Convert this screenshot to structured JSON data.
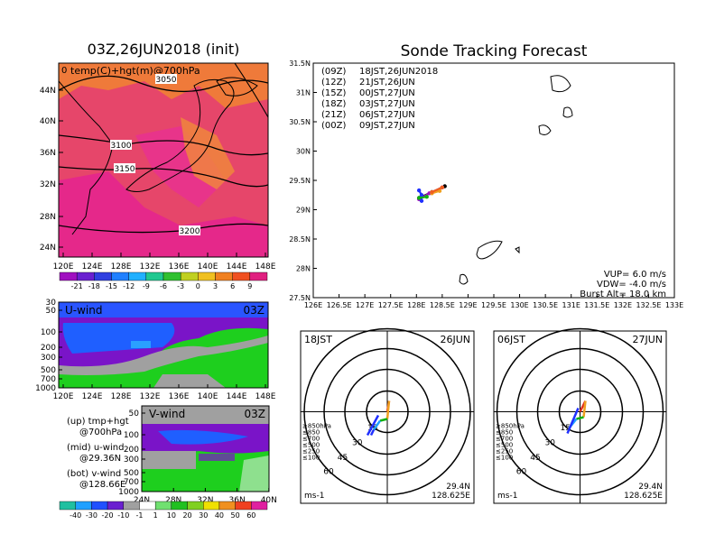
{
  "header": {
    "left_title": "03Z,26JUN2018 (init)",
    "right_title": "Sonde Tracking Forecast"
  },
  "colors": {
    "temp_bg": "#e03c6c",
    "temp_orange": "#ef7a3a",
    "temp_pink": "#e8348a",
    "u_purple": "#7a14c8",
    "u_blue": "#1f5fff",
    "u_cyan": "#2aa0ff",
    "u_green": "#1ecf1e",
    "v_grey": "#a0a0a0",
    "v_purple": "#7a14c8"
  },
  "temp_map": {
    "label": "temp(C)+hgt(m)@700hPa",
    "corner": "0",
    "contours": [
      "3050",
      "3100",
      "3150",
      "3200"
    ],
    "lat_ticks": [
      "44N",
      "40N",
      "36N",
      "32N",
      "28N",
      "24N"
    ],
    "lon_ticks": [
      "120E",
      "124E",
      "128E",
      "132E",
      "136E",
      "140E",
      "144E",
      "148E"
    ],
    "colorbar_labels": [
      "-21",
      "-18",
      "-15",
      "-12",
      "-9",
      "-6",
      "-3",
      "0",
      "3",
      "6",
      "9"
    ]
  },
  "u_panel": {
    "label": "U-wind",
    "time": "03Z",
    "p_ticks": [
      "30",
      "50",
      "100",
      "200",
      "300",
      "500",
      "700",
      "1000"
    ],
    "lon_ticks": [
      "120E",
      "124E",
      "128E",
      "132E",
      "136E",
      "140E",
      "144E",
      "148E"
    ]
  },
  "v_panel": {
    "label": "V-wind",
    "time": "03Z",
    "p_ticks": [
      "50",
      "100",
      "200",
      "300",
      "500",
      "700",
      "1000"
    ],
    "lat_ticks": [
      "24N",
      "28N",
      "32N",
      "36N",
      "40N"
    ],
    "colorbar_labels": [
      "-40",
      "-30",
      "-20",
      "-10",
      "-1",
      "1",
      "10",
      "20",
      "30",
      "40",
      "50",
      "60"
    ]
  },
  "notes": {
    "up1": "(up)  tmp+hgt",
    "up2": "@700hPa",
    "mid1": "(mid)  u-wind",
    "mid2": "@29.36N",
    "bot1": "(bot)  v-wind",
    "bot2": "@128.66E"
  },
  "track_map": {
    "legend": [
      {
        "code": "(09Z)",
        "text": "18JST,26JUN2018",
        "color": "#000000"
      },
      {
        "code": "(12Z)",
        "text": "21JST,26JUN",
        "color": "#a010c0"
      },
      {
        "code": "(15Z)",
        "text": "00JST,27JUN",
        "color": "#2030ff"
      },
      {
        "code": "(18Z)",
        "text": "03JST,27JUN",
        "color": "#10b010"
      },
      {
        "code": "(21Z)",
        "text": "06JST,27JUN",
        "color": "#f0a020"
      },
      {
        "code": "(00Z)",
        "text": "09JST,27JUN",
        "color": "#f06020"
      }
    ],
    "lat_ticks": [
      "31.5N",
      "31N",
      "30.5N",
      "30N",
      "29.5N",
      "29N",
      "28.5N",
      "28N",
      "27.5N"
    ],
    "lon_ticks": [
      "126E",
      "126.5E",
      "127E",
      "127.5E",
      "128E",
      "128.5E",
      "129E",
      "129.5E",
      "130E",
      "130.5E",
      "131E",
      "131.5E",
      "132E",
      "132.5E",
      "133E"
    ],
    "info": [
      "VUP=  6.0  m/s",
      "VDW= -4.0  m/s",
      "Burst Alt=  18.0  km"
    ]
  },
  "hodo_left": {
    "time": "18JST",
    "date": "26JUN",
    "rings": [
      "15",
      "30",
      "45",
      "60"
    ],
    "levels": [
      "≥850hPa",
      "≤850",
      "≤700",
      "≤500",
      "≤250",
      "≤100"
    ],
    "level_colors": [
      "#e03020",
      "#f0a020",
      "#f0d000",
      "#10b010",
      "#20a0ff",
      "#2030ff"
    ],
    "unit": "ms-1",
    "lat": "29.4N",
    "lon": "128.625E"
  },
  "hodo_right": {
    "time": "06JST",
    "date": "27JUN",
    "rings": [
      "15",
      "30",
      "45",
      "60"
    ],
    "levels": [
      "≥850hPa",
      "≤850",
      "≤700",
      "≤500",
      "≤250",
      "≤100"
    ],
    "level_colors": [
      "#e03020",
      "#f0a020",
      "#f0d000",
      "#10b010",
      "#20a0ff",
      "#2030ff"
    ],
    "unit": "ms-1",
    "lat": "29.4N",
    "lon": "128.625E"
  },
  "chart_data": [
    {
      "type": "line",
      "title": "Sonde Tracking Forecast",
      "xlim": [
        126,
        133
      ],
      "ylim": [
        27.5,
        31.5
      ],
      "series": [
        {
          "name": "(09Z) 18JST,26JUN2018",
          "x": [
            128.05,
            128.3,
            128.55
          ],
          "y": [
            29.2,
            29.3,
            29.4
          ]
        },
        {
          "name": "(12Z) 21JST,26JUN",
          "x": [
            128.05,
            128.25,
            128.5
          ],
          "y": [
            29.18,
            29.28,
            29.38
          ]
        },
        {
          "name": "(15Z) 00JST,27JUN",
          "x": [
            128.1,
            128.1,
            128.05
          ],
          "y": [
            29.15,
            29.25,
            29.33
          ]
        },
        {
          "name": "(18Z) 03JST,27JUN",
          "x": [
            128.05,
            128.2
          ],
          "y": [
            29.2,
            29.22
          ]
        },
        {
          "name": "(21Z) 06JST,27JUN",
          "x": [
            128.3,
            128.45
          ],
          "y": [
            29.28,
            29.32
          ]
        },
        {
          "name": "(00Z) 09JST,27JUN",
          "x": [
            128.3,
            128.5
          ],
          "y": [
            29.3,
            29.38
          ]
        }
      ]
    }
  ]
}
